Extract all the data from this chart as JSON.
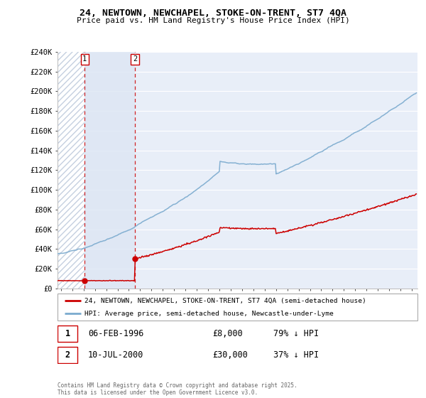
{
  "title": "24, NEWTOWN, NEWCHAPEL, STOKE-ON-TRENT, ST7 4QA",
  "subtitle": "Price paid vs. HM Land Registry's House Price Index (HPI)",
  "legend_entry1": "24, NEWTOWN, NEWCHAPEL, STOKE-ON-TRENT, ST7 4QA (semi-detached house)",
  "legend_entry2": "HPI: Average price, semi-detached house, Newcastle-under-Lyme",
  "sale1_date": "06-FEB-1996",
  "sale1_price": "£8,000",
  "sale1_hpi": "79% ↓ HPI",
  "sale1_year": 1996.1,
  "sale1_value": 8000,
  "sale2_date": "10-JUL-2000",
  "sale2_price": "£30,000",
  "sale2_hpi": "37% ↓ HPI",
  "sale2_year": 2000.53,
  "sale2_value": 30000,
  "footer": "Contains HM Land Registry data © Crown copyright and database right 2025.\nThis data is licensed under the Open Government Licence v3.0.",
  "red_color": "#cc0000",
  "blue_color": "#7aaace",
  "ylim": [
    0,
    240000
  ],
  "yticks": [
    0,
    20000,
    40000,
    60000,
    80000,
    100000,
    120000,
    140000,
    160000,
    180000,
    200000,
    220000,
    240000
  ],
  "xlim_start": 1993.7,
  "xlim_end": 2025.5,
  "plot_bg": "#e8eef8",
  "hatch_color": "#c5d0e0"
}
